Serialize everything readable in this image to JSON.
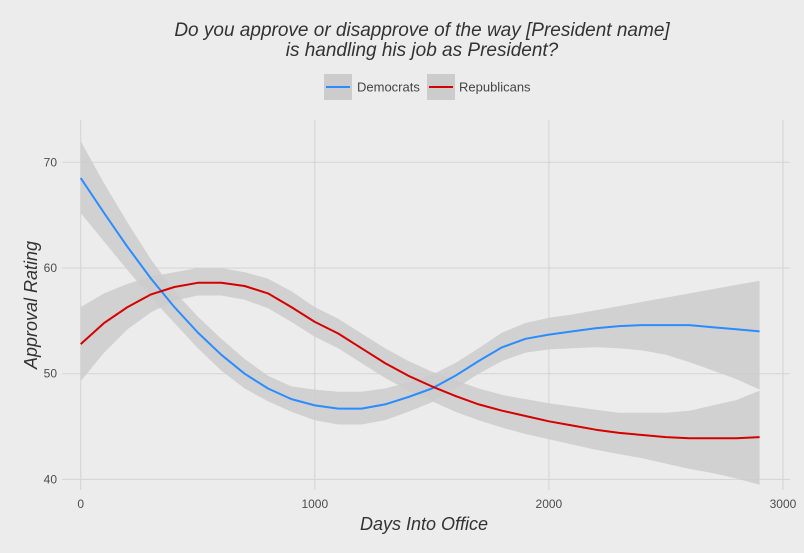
{
  "chart_data": {
    "type": "line",
    "title_lines": [
      "Do you approve or disapprove of the way [President name]",
      "is handling his job as President?"
    ],
    "xlabel": "Days Into Office",
    "ylabel": "Approval Rating",
    "xlim": [
      -80,
      3030
    ],
    "ylim": [
      39,
      74
    ],
    "x_ticks": [
      0,
      1000,
      2000,
      3000
    ],
    "y_ticks": [
      40,
      50,
      60,
      70
    ],
    "grid": true,
    "legend_position": "top",
    "confidence_band": true,
    "band_color": "#cccccc",
    "series": [
      {
        "name": "Democrats",
        "color": "#2b8cff",
        "x": [
          0,
          100,
          200,
          300,
          400,
          500,
          600,
          700,
          800,
          900,
          1000,
          1100,
          1200,
          1300,
          1400,
          1500,
          1600,
          1700,
          1800,
          1900,
          2000,
          2100,
          2200,
          2300,
          2400,
          2500,
          2600,
          2700,
          2800,
          2900
        ],
        "y": [
          68.5,
          65.2,
          62.0,
          59.0,
          56.3,
          53.9,
          51.8,
          50.0,
          48.6,
          47.6,
          47.0,
          46.7,
          46.7,
          47.1,
          47.8,
          48.6,
          49.8,
          51.2,
          52.5,
          53.3,
          53.7,
          54.0,
          54.3,
          54.5,
          54.6,
          54.6,
          54.6,
          54.4,
          54.2,
          54.0
        ],
        "lower": [
          65.2,
          62.5,
          59.8,
          57.2,
          54.8,
          52.4,
          50.3,
          48.6,
          47.4,
          46.4,
          45.6,
          45.2,
          45.2,
          45.6,
          46.4,
          47.3,
          48.6,
          50.0,
          51.2,
          52.0,
          52.3,
          52.4,
          52.5,
          52.4,
          52.2,
          51.8,
          51.1,
          50.3,
          49.5,
          48.5
        ],
        "upper": [
          72.0,
          68.0,
          64.3,
          60.8,
          57.8,
          55.4,
          53.3,
          51.4,
          49.8,
          48.8,
          48.5,
          48.3,
          48.3,
          48.6,
          49.2,
          49.9,
          51.0,
          52.4,
          53.9,
          54.8,
          55.3,
          55.6,
          56.0,
          56.4,
          56.8,
          57.2,
          57.6,
          58.0,
          58.4,
          58.8
        ]
      },
      {
        "name": "Republicans",
        "color": "#d40000",
        "x": [
          0,
          100,
          200,
          300,
          400,
          500,
          600,
          700,
          800,
          900,
          1000,
          1100,
          1200,
          1300,
          1400,
          1500,
          1600,
          1700,
          1800,
          1900,
          2000,
          2100,
          2200,
          2300,
          2400,
          2500,
          2600,
          2700,
          2800,
          2900
        ],
        "y": [
          52.8,
          54.8,
          56.3,
          57.5,
          58.2,
          58.6,
          58.6,
          58.3,
          57.6,
          56.3,
          54.9,
          53.8,
          52.4,
          51.0,
          49.8,
          48.8,
          47.9,
          47.1,
          46.5,
          46.0,
          45.5,
          45.1,
          44.7,
          44.4,
          44.2,
          44.0,
          43.9,
          43.9,
          43.9,
          44.0
        ],
        "lower": [
          49.3,
          52.0,
          54.2,
          55.8,
          56.9,
          57.4,
          57.4,
          57.0,
          56.2,
          54.9,
          53.5,
          52.4,
          51.0,
          49.6,
          48.4,
          47.4,
          46.4,
          45.6,
          44.9,
          44.3,
          43.8,
          43.3,
          42.8,
          42.4,
          42.0,
          41.5,
          41.0,
          40.6,
          40.1,
          39.5
        ],
        "upper": [
          56.3,
          57.6,
          58.5,
          59.2,
          59.6,
          60.0,
          60.0,
          59.6,
          59.0,
          57.8,
          56.3,
          55.2,
          53.8,
          52.4,
          51.2,
          50.2,
          49.4,
          48.6,
          48.0,
          47.6,
          47.2,
          46.9,
          46.6,
          46.3,
          46.3,
          46.3,
          46.5,
          47.0,
          47.5,
          48.4
        ]
      }
    ]
  }
}
